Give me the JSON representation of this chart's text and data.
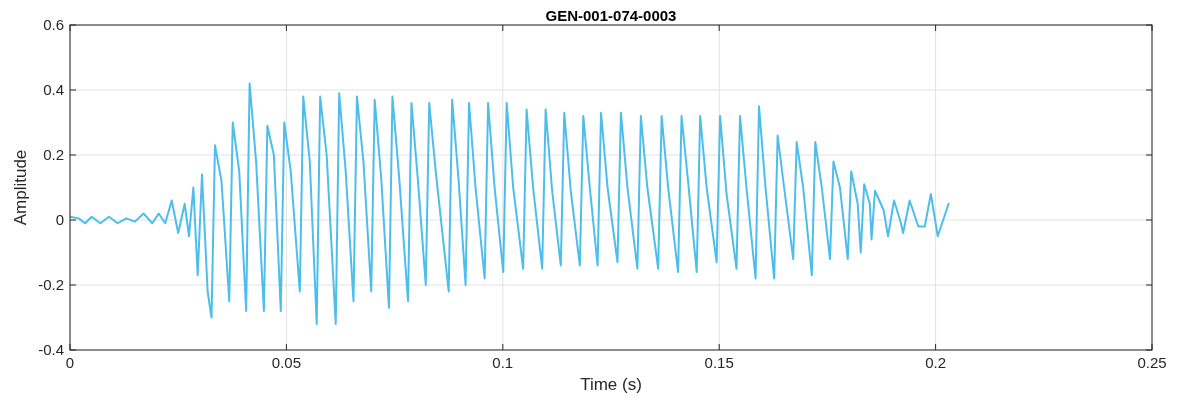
{
  "chart_data": {
    "type": "line",
    "title": "GEN-001-074-0003",
    "xlabel": "Time (s)",
    "ylabel": "Amplitude",
    "xlim": [
      0,
      0.25
    ],
    "xticks": [
      0,
      0.05,
      0.1,
      0.15,
      0.2,
      0.25
    ],
    "ylim": [
      -0.4,
      0.6
    ],
    "yticks": [
      -0.4,
      -0.2,
      0,
      0.2,
      0.4,
      0.6
    ],
    "grid": true,
    "marker": "none",
    "line_style": "solid",
    "series": [
      {
        "color": "#4dbeeb",
        "x": [
          0,
          0.002,
          0.0035,
          0.005,
          0.007,
          0.009,
          0.011,
          0.013,
          0.015,
          0.017,
          0.019,
          0.0205,
          0.022,
          0.0235,
          0.025,
          0.0265,
          0.0275,
          0.0285,
          0.0295,
          0.0305,
          0.0318,
          0.0327,
          0.0335,
          0.035,
          0.0368,
          0.0376,
          0.0391,
          0.0407,
          0.0415,
          0.043,
          0.0448,
          0.0456,
          0.0471,
          0.0487,
          0.0495,
          0.051,
          0.0531,
          0.0539,
          0.0554,
          0.057,
          0.0578,
          0.0593,
          0.0614,
          0.0622,
          0.0637,
          0.0655,
          0.0663,
          0.0678,
          0.0696,
          0.0704,
          0.0719,
          0.0737,
          0.0745,
          0.076,
          0.0781,
          0.0789,
          0.0804,
          0.0822,
          0.083,
          0.0845,
          0.0875,
          0.0883,
          0.0898,
          0.0914,
          0.0922,
          0.0937,
          0.0958,
          0.0966,
          0.0981,
          0.1001,
          0.1009,
          0.1024,
          0.1047,
          0.1055,
          0.107,
          0.1091,
          0.1099,
          0.1114,
          0.1134,
          0.1142,
          0.1157,
          0.1178,
          0.1186,
          0.1201,
          0.1219,
          0.1227,
          0.1242,
          0.1265,
          0.1273,
          0.1288,
          0.1311,
          0.1319,
          0.1334,
          0.1359,
          0.1367,
          0.1382,
          0.1405,
          0.1413,
          0.1428,
          0.1448,
          0.1456,
          0.1471,
          0.1494,
          0.1502,
          0.1517,
          0.154,
          0.1548,
          0.1563,
          0.1584,
          0.1592,
          0.1607,
          0.1627,
          0.1635,
          0.165,
          0.1671,
          0.1679,
          0.1694,
          0.1714,
          0.1722,
          0.1737,
          0.1756,
          0.1764,
          0.1779,
          0.1797,
          0.1805,
          0.182,
          0.1827,
          0.1835,
          0.1848,
          0.1852,
          0.186,
          0.188,
          0.189,
          0.1904,
          0.192,
          0.1925,
          0.194,
          0.196,
          0.1975,
          0.1989,
          0.2005,
          0.203
        ],
        "values": [
          0.01,
          0.005,
          -0.01,
          0.01,
          -0.01,
          0.01,
          -0.01,
          0.005,
          -0.005,
          0.02,
          -0.01,
          0.02,
          -0.01,
          0.06,
          -0.04,
          0.05,
          -0.05,
          0.1,
          -0.17,
          0.14,
          -0.22,
          -0.3,
          0.23,
          0.12,
          -0.25,
          0.3,
          0.15,
          -0.28,
          0.42,
          0.18,
          -0.28,
          0.29,
          0.2,
          -0.28,
          0.3,
          0.15,
          -0.22,
          0.38,
          0.18,
          -0.32,
          0.38,
          0.2,
          -0.32,
          0.39,
          0.15,
          -0.25,
          0.38,
          0.18,
          -0.22,
          0.37,
          0.13,
          -0.27,
          0.38,
          0.14,
          -0.25,
          0.36,
          0.12,
          -0.2,
          0.36,
          0.15,
          -0.22,
          0.37,
          0.12,
          -0.2,
          0.36,
          0.1,
          -0.18,
          0.36,
          0.1,
          -0.16,
          0.36,
          0.1,
          -0.15,
          0.34,
          0.1,
          -0.15,
          0.34,
          0.09,
          -0.14,
          0.33,
          0.09,
          -0.14,
          0.32,
          0.1,
          -0.14,
          0.33,
          0.1,
          -0.13,
          0.33,
          0.1,
          -0.15,
          0.32,
          0.1,
          -0.15,
          0.32,
          0.1,
          -0.16,
          0.32,
          0.12,
          -0.16,
          0.32,
          0.1,
          -0.13,
          0.32,
          0.08,
          -0.15,
          0.32,
          0.1,
          -0.18,
          0.35,
          0.1,
          -0.18,
          0.26,
          0.1,
          -0.12,
          0.24,
          0.1,
          -0.17,
          0.24,
          0.1,
          -0.12,
          0.18,
          0.1,
          -0.12,
          0.15,
          0.05,
          -0.1,
          0.11,
          0.05,
          -0.06,
          0.09,
          0.03,
          -0.05,
          0.06,
          -0.01,
          -0.04,
          0.06,
          -0.02,
          -0.02,
          0.08,
          -0.05,
          0.05
        ]
      }
    ]
  }
}
